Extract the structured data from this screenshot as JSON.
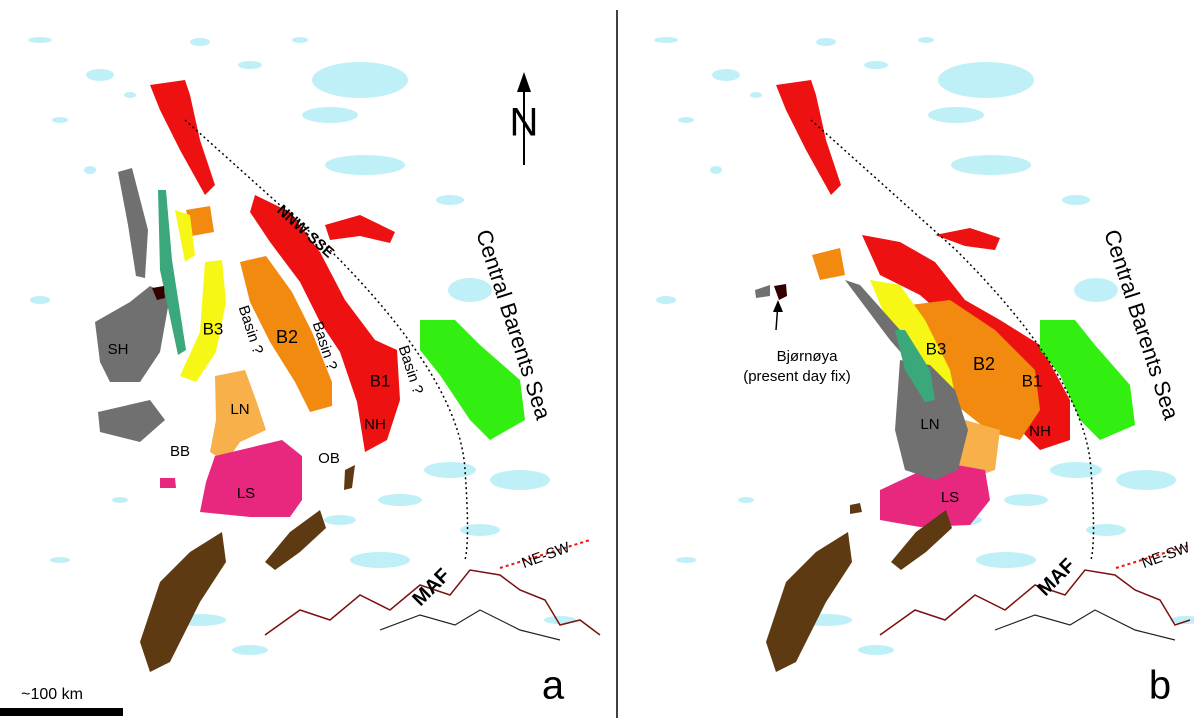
{
  "north": "N",
  "scale_bar": "~100 km",
  "panels": [
    {
      "letter": "a",
      "labels": [
        "NNW-SSE",
        "Central Barents Sea",
        "B3",
        "Basin ?",
        "B2",
        "Basin ?",
        "Basin ?",
        "B1",
        "SH",
        "LN",
        "BB",
        "OB",
        "NH",
        "LS",
        "MAF",
        "NE-SW"
      ]
    },
    {
      "letter": "b",
      "labels": [
        "Central Barents Sea",
        "B3",
        "B2",
        "B1",
        "Bjørnøya",
        "(present day fix)",
        "LN",
        "NH",
        "LS",
        "MAF",
        "NE-SW"
      ]
    }
  ]
}
